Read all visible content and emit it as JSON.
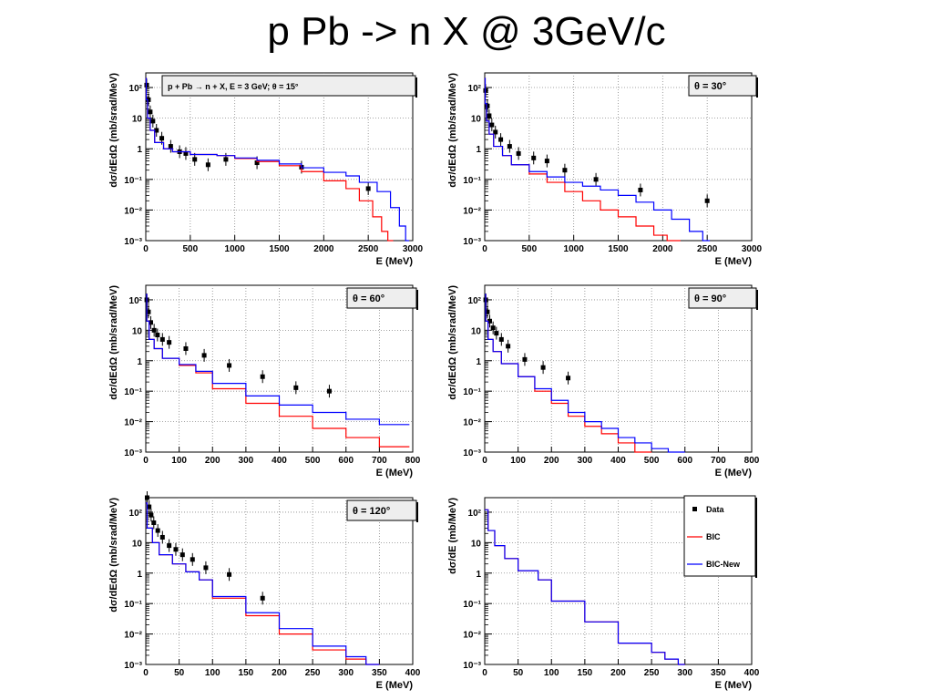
{
  "slide_title": "p Pb -> n X  @ 3GeV/c",
  "legend": {
    "entries": [
      {
        "label": "Data",
        "color": "#000000",
        "marker": "square"
      },
      {
        "label": "BIC",
        "color": "#ff0000",
        "marker": "line"
      },
      {
        "label": "BIC-New",
        "color": "#0000ff",
        "marker": "line"
      }
    ]
  },
  "chart_data": [
    {
      "type": "line",
      "title": "p + Pb → n + X, E = 3 GeV;   θ = 15°",
      "xlabel": "E (MeV)",
      "ylabel": "dσ/dEdΩ (mb/srad/MeV)",
      "xlim": [
        0,
        3000
      ],
      "ylim": [
        0.001,
        300
      ],
      "yscale": "log",
      "grid": true,
      "xticks": [
        "0",
        "500",
        "1000",
        "1500",
        "2000",
        "2500",
        "3000"
      ],
      "xtick_values": [
        0,
        500,
        1000,
        1500,
        2000,
        2500,
        3000
      ],
      "yticks": [
        "10⁻³",
        "10⁻²",
        "10⁻¹",
        "1",
        "10",
        "10²"
      ],
      "series": [
        {
          "name": "Data",
          "x": [
            10,
            30,
            50,
            80,
            120,
            180,
            280,
            380,
            450,
            550,
            700,
            900,
            1250,
            1750,
            2500
          ],
          "y": [
            120,
            40,
            16,
            8,
            4,
            2.2,
            1.2,
            0.8,
            0.7,
            0.45,
            0.3,
            0.45,
            0.35,
            0.25,
            0.05
          ]
        },
        {
          "name": "BIC",
          "x": [
            5,
            20,
            50,
            100,
            200,
            300,
            500,
            800,
            1000,
            1250,
            1500,
            1750,
            2000,
            2250,
            2400,
            2550,
            2650,
            2720,
            2780
          ],
          "y": [
            200,
            40,
            10,
            4,
            1.6,
            1.0,
            0.8,
            0.65,
            0.6,
            0.48,
            0.38,
            0.28,
            0.18,
            0.09,
            0.05,
            0.02,
            0.006,
            0.002,
            0.001
          ]
        },
        {
          "name": "BIC-New",
          "x": [
            5,
            20,
            50,
            100,
            200,
            300,
            500,
            800,
            1000,
            1250,
            1500,
            1750,
            2000,
            2250,
            2400,
            2600,
            2750,
            2850,
            2920,
            2960
          ],
          "y": [
            200,
            40,
            10,
            4,
            1.6,
            1.0,
            0.8,
            0.65,
            0.6,
            0.5,
            0.42,
            0.32,
            0.24,
            0.17,
            0.13,
            0.08,
            0.04,
            0.012,
            0.003,
            0.001
          ]
        }
      ]
    },
    {
      "type": "line",
      "title": "θ = 30°",
      "xlabel": "E (MeV)",
      "ylabel": "dσ/dEdΩ (mb/srad/MeV)",
      "xlim": [
        0,
        3000
      ],
      "ylim": [
        0.001,
        300
      ],
      "yscale": "log",
      "grid": true,
      "xticks": [
        "0",
        "500",
        "1000",
        "1500",
        "2000",
        "2500",
        "3000"
      ],
      "xtick_values": [
        0,
        500,
        1000,
        1500,
        2000,
        2500,
        3000
      ],
      "yticks": [
        "10⁻³",
        "10⁻²",
        "10⁻¹",
        "1",
        "10",
        "10²"
      ],
      "series": [
        {
          "name": "Data",
          "x": [
            10,
            30,
            50,
            80,
            120,
            180,
            280,
            380,
            550,
            700,
            900,
            1250,
            1750,
            2500
          ],
          "y": [
            80,
            25,
            12,
            6,
            3.5,
            2,
            1.2,
            0.7,
            0.5,
            0.4,
            0.2,
            0.1,
            0.045,
            0.02
          ]
        },
        {
          "name": "BIC",
          "x": [
            5,
            20,
            50,
            100,
            200,
            300,
            500,
            700,
            900,
            1100,
            1300,
            1500,
            1700,
            1900,
            2050,
            2200
          ],
          "y": [
            200,
            30,
            8,
            3,
            1.2,
            0.6,
            0.3,
            0.15,
            0.08,
            0.04,
            0.02,
            0.01,
            0.006,
            0.003,
            0.0015,
            0.001
          ]
        },
        {
          "name": "BIC-New",
          "x": [
            5,
            20,
            50,
            100,
            200,
            300,
            500,
            700,
            900,
            1100,
            1300,
            1500,
            1700,
            1900,
            2100,
            2300,
            2450,
            2530
          ],
          "y": [
            200,
            30,
            8,
            3,
            1.2,
            0.6,
            0.3,
            0.18,
            0.12,
            0.08,
            0.06,
            0.045,
            0.03,
            0.018,
            0.01,
            0.005,
            0.002,
            0.001
          ]
        }
      ]
    },
    {
      "type": "line",
      "title": "θ = 60°",
      "xlabel": "E (MeV)",
      "ylabel": "dσ/dEdΩ (mb/srad/MeV)",
      "xlim": [
        0,
        800
      ],
      "ylim": [
        0.001,
        300
      ],
      "yscale": "log",
      "grid": true,
      "xticks": [
        "0",
        "100",
        "200",
        "300",
        "400",
        "500",
        "600",
        "700",
        "800"
      ],
      "xtick_values": [
        0,
        100,
        200,
        300,
        400,
        500,
        600,
        700,
        800
      ],
      "yticks": [
        "10⁻³",
        "10⁻²",
        "10⁻¹",
        "1",
        "10",
        "10²"
      ],
      "series": [
        {
          "name": "Data",
          "x": [
            3,
            8,
            15,
            25,
            35,
            50,
            70,
            120,
            175,
            250,
            350,
            450,
            550
          ],
          "y": [
            100,
            40,
            18,
            10,
            7,
            5,
            4,
            2.5,
            1.5,
            0.7,
            0.3,
            0.13,
            0.1
          ]
        },
        {
          "name": "BIC",
          "x": [
            3,
            10,
            25,
            50,
            100,
            150,
            200,
            300,
            400,
            500,
            600,
            700,
            790
          ],
          "y": [
            150,
            20,
            5,
            2.5,
            1.2,
            0.7,
            0.4,
            0.12,
            0.04,
            0.015,
            0.006,
            0.003,
            0.0015
          ]
        },
        {
          "name": "BIC-New",
          "x": [
            3,
            10,
            25,
            50,
            100,
            150,
            200,
            300,
            400,
            500,
            600,
            700,
            790
          ],
          "y": [
            150,
            20,
            5,
            2.5,
            1.2,
            0.75,
            0.45,
            0.18,
            0.07,
            0.035,
            0.02,
            0.012,
            0.008
          ]
        }
      ]
    },
    {
      "type": "line",
      "title": "θ = 90°",
      "xlabel": "E (MeV)",
      "ylabel": "dσ/dEdΩ (mb/srad/MeV)",
      "xlim": [
        0,
        800
      ],
      "ylim": [
        0.001,
        300
      ],
      "yscale": "log",
      "grid": true,
      "xticks": [
        "0",
        "100",
        "200",
        "300",
        "400",
        "500",
        "600",
        "700",
        "800"
      ],
      "xtick_values": [
        0,
        100,
        200,
        300,
        400,
        500,
        600,
        700,
        800
      ],
      "yticks": [
        "10⁻³",
        "10⁻²",
        "10⁻¹",
        "1",
        "10",
        "10²"
      ],
      "series": [
        {
          "name": "Data",
          "x": [
            3,
            8,
            15,
            25,
            35,
            50,
            70,
            120,
            175,
            250
          ],
          "y": [
            100,
            40,
            20,
            12,
            8,
            5,
            3,
            1.1,
            0.6,
            0.27
          ]
        },
        {
          "name": "BIC",
          "x": [
            3,
            10,
            25,
            50,
            100,
            150,
            200,
            250,
            300,
            350,
            400,
            450,
            500
          ],
          "y": [
            150,
            20,
            5,
            2,
            0.8,
            0.3,
            0.1,
            0.04,
            0.015,
            0.007,
            0.004,
            0.002,
            0.001
          ]
        },
        {
          "name": "BIC-New",
          "x": [
            3,
            10,
            25,
            50,
            100,
            150,
            200,
            250,
            300,
            350,
            400,
            450,
            500,
            550,
            600
          ],
          "y": [
            150,
            20,
            5,
            2,
            0.8,
            0.3,
            0.12,
            0.05,
            0.02,
            0.01,
            0.006,
            0.003,
            0.002,
            0.0013,
            0.001
          ]
        }
      ]
    },
    {
      "type": "line",
      "title": "θ = 120°",
      "xlabel": "E (MeV)",
      "ylabel": "dσ/dEdΩ (mb/srad/MeV)",
      "xlim": [
        0,
        400
      ],
      "ylim": [
        0.001,
        300
      ],
      "yscale": "log",
      "grid": true,
      "xticks": [
        "0",
        "50",
        "100",
        "150",
        "200",
        "250",
        "300",
        "350",
        "400"
      ],
      "xtick_values": [
        0,
        50,
        100,
        150,
        200,
        250,
        300,
        350,
        400
      ],
      "yticks": [
        "10⁻³",
        "10⁻²",
        "10⁻¹",
        "1",
        "10",
        "10²"
      ],
      "series": [
        {
          "name": "Data",
          "x": [
            2,
            5,
            8,
            12,
            18,
            25,
            35,
            45,
            55,
            70,
            90,
            125,
            175
          ],
          "y": [
            300,
            150,
            80,
            45,
            25,
            15,
            8,
            6,
            4,
            2.8,
            1.5,
            0.9,
            0.15
          ]
        },
        {
          "name": "BIC",
          "x": [
            2,
            10,
            20,
            40,
            60,
            80,
            100,
            150,
            200,
            250,
            300,
            330,
            350
          ],
          "y": [
            200,
            30,
            10,
            4,
            2,
            1.1,
            0.6,
            0.15,
            0.04,
            0.01,
            0.003,
            0.0015,
            0.001
          ]
        },
        {
          "name": "BIC-New",
          "x": [
            2,
            10,
            20,
            40,
            60,
            80,
            100,
            150,
            200,
            250,
            300,
            330,
            350
          ],
          "y": [
            200,
            30,
            10,
            4,
            2,
            1.1,
            0.6,
            0.17,
            0.05,
            0.015,
            0.004,
            0.0018,
            0.001
          ]
        }
      ]
    },
    {
      "type": "line",
      "title": "",
      "xlabel": "E (MeV)",
      "ylabel": "dσ/dE (mb/MeV)",
      "xlim": [
        0,
        400
      ],
      "ylim": [
        0.001,
        300
      ],
      "yscale": "log",
      "grid": true,
      "xticks": [
        "0",
        "50",
        "100",
        "150",
        "200",
        "250",
        "300",
        "350",
        "400"
      ],
      "xtick_values": [
        0,
        50,
        100,
        150,
        200,
        250,
        300,
        350,
        400
      ],
      "yticks": [
        "10⁻³",
        "10⁻²",
        "10⁻¹",
        "1",
        "10",
        "10²"
      ],
      "series": [
        {
          "name": "BIC",
          "x": [
            5,
            15,
            30,
            50,
            80,
            100,
            150,
            200,
            250,
            270,
            290,
            300
          ],
          "y": [
            120,
            25,
            8,
            3,
            1.2,
            0.6,
            0.12,
            0.025,
            0.005,
            0.0025,
            0.0015,
            0.001
          ]
        },
        {
          "name": "BIC-New",
          "x": [
            5,
            15,
            30,
            50,
            80,
            100,
            150,
            200,
            250,
            270,
            290,
            300
          ],
          "y": [
            120,
            25,
            8,
            3,
            1.2,
            0.6,
            0.12,
            0.025,
            0.005,
            0.0025,
            0.0015,
            0.001
          ]
        }
      ]
    }
  ]
}
